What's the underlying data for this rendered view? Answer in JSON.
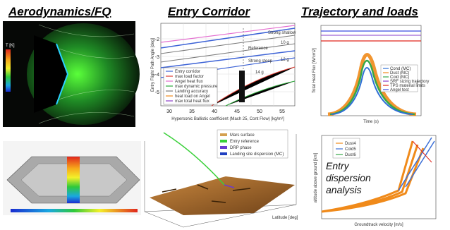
{
  "headings": [
    "Aerodynamics/FQ",
    "Entry Corridor",
    "Trajectory and loads"
  ],
  "aero": {
    "colorbar_title": "T [K]"
  },
  "corridor": {
    "x_label": "Hypersonic Ballistic coefficient (Mach 25, Cont Flow) [kg/m²]",
    "y_label": "Entry Flight Path Angle [deg]",
    "x_ticks": [
      "30",
      "35",
      "40",
      "45",
      "50",
      "55"
    ],
    "y_ticks": [
      "-2",
      "-3",
      "-4",
      "-5"
    ],
    "annotations": [
      "Strong shallow",
      "Reference",
      "Strong steep",
      "10 g",
      "12 g",
      "14 g"
    ],
    "legend": [
      "Entry corridor",
      "max load factor",
      "Angel heat flux",
      "max dynamic pressure",
      "Landing accuracy",
      "heat load on Angel",
      "max total heat flux"
    ]
  },
  "trajectory": {
    "x_label": "Time (s)",
    "y_label": "Total Heat Flux [W/cm2]",
    "legend": [
      "Cond (MC)",
      "Dust (MC)",
      "Cold (MC)",
      "SRF sizing trajectory",
      "TPS material limits",
      "Angel test"
    ]
  },
  "terrain": {
    "legend": [
      "Mars surface",
      "Entry reference",
      "DRP phase",
      "Landing site dispersion (MC)"
    ],
    "y_label": "Latitude [deg]"
  },
  "dispersion": {
    "label_lines": [
      "Entry",
      "dispersion",
      "analysis"
    ],
    "legend": [
      "Dust4",
      "Cold5",
      "Dust6"
    ],
    "x_label": "Groundtrack velocity [m/s]",
    "y_label": "altitude above ground [km]"
  }
}
